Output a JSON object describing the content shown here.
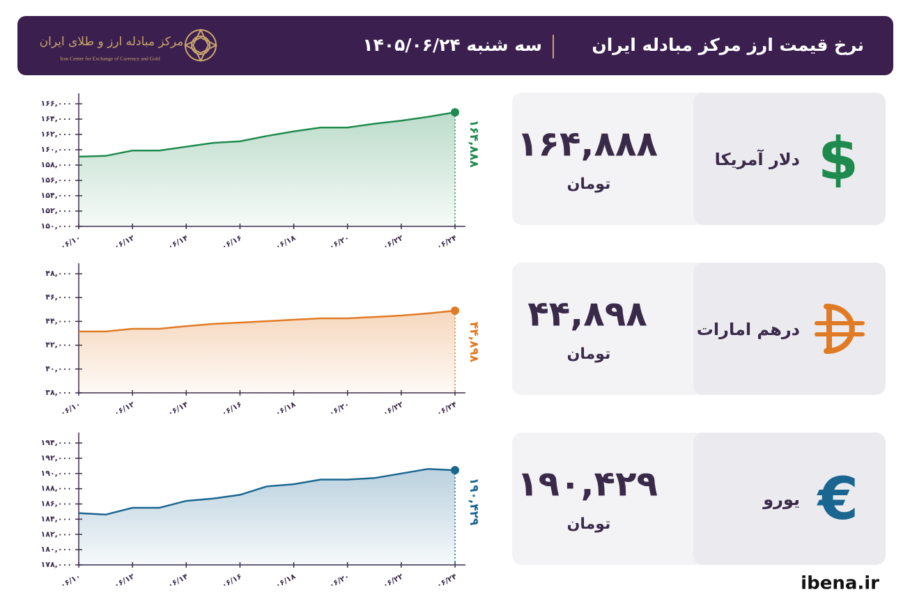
{
  "header": {
    "title": "نرخ قیمت ارز مرکز مبادله ایران",
    "date": "سه شنبه ۱۴۰۵/۰۶/۲۴",
    "logo_text": "مرکز مبادله ارز و طلای ایران",
    "logo_subtitle": "Iran Center for Exchange of Currency and Gold"
  },
  "footer": "ibena.ir",
  "chart_data": [
    {
      "type": "line",
      "title": "دلار آمریکا",
      "unit": "تومان",
      "symbol": "$",
      "color": "#1e8a4e",
      "categories": [
        "۰۶/۱۰",
        null,
        "۰۶/۱۲",
        null,
        "۰۶/۱۴",
        null,
        "۰۶/۱۶",
        null,
        "۰۶/۱۸",
        null,
        "۰۶/۲۰",
        null,
        "۰۶/۲۲",
        null,
        "۰۶/۲۴"
      ],
      "values": [
        159100,
        159200,
        159900,
        159900,
        160400,
        160900,
        161100,
        161800,
        162400,
        162900,
        162900,
        163400,
        163800,
        164300,
        164888
      ],
      "value_labels": [
        null,
        null,
        null,
        null,
        null,
        null,
        null,
        null,
        null,
        null,
        null,
        null,
        null,
        null,
        "۱۶۴,۸۸۸"
      ],
      "ylim": [
        150000,
        166000
      ],
      "yticks": [
        {
          "value": 150000,
          "label": "۱۵۰,۰۰۰"
        },
        {
          "value": 152000,
          "label": "۱۵۲,۰۰۰"
        },
        {
          "value": 154000,
          "label": "۱۵۴,۰۰۰"
        },
        {
          "value": 156000,
          "label": "۱۵۶,۰۰۰"
        },
        {
          "value": 158000,
          "label": "۱۵۸,۰۰۰"
        },
        {
          "value": 160000,
          "label": "۱۶۰,۰۰۰"
        },
        {
          "value": 162000,
          "label": "۱۶۲,۰۰۰"
        },
        {
          "value": 164000,
          "label": "۱۶۴,۰۰۰"
        },
        {
          "value": 166000,
          "label": "۱۶۶,۰۰۰"
        }
      ]
    },
    {
      "type": "line",
      "title": "درهم امارات",
      "unit": "تومان",
      "color": "#e07a24",
      "categories": [
        "۰۶/۱۰",
        null,
        "۰۶/۱۲",
        null,
        "۰۶/۱۴",
        null,
        "۰۶/۱۶",
        null,
        "۰۶/۱۸",
        null,
        "۰۶/۲۰",
        null,
        "۰۶/۲۲",
        null,
        "۰۶/۲۴"
      ],
      "values": [
        43150,
        43150,
        43380,
        43380,
        43600,
        43790,
        43900,
        44020,
        44140,
        44260,
        44260,
        44370,
        44490,
        44670,
        44898
      ],
      "value_labels": [
        null,
        null,
        null,
        null,
        null,
        null,
        null,
        null,
        null,
        null,
        null,
        null,
        null,
        null,
        "۴۴,۸۹۸"
      ],
      "ylim": [
        38000,
        48000
      ],
      "yticks": [
        {
          "value": 38000,
          "label": "۳۸,۰۰۰"
        },
        {
          "value": 40000,
          "label": "۴۰,۰۰۰"
        },
        {
          "value": 42000,
          "label": "۴۲,۰۰۰"
        },
        {
          "value": 44000,
          "label": "۴۴,۰۰۰"
        },
        {
          "value": 46000,
          "label": "۴۶,۰۰۰"
        },
        {
          "value": 48000,
          "label": "۴۸,۰۰۰"
        }
      ]
    },
    {
      "type": "line",
      "title": "یورو",
      "unit": "تومان",
      "symbol": "€",
      "color": "#1a6690",
      "categories": [
        "۰۶/۱۰",
        null,
        "۰۶/۱۲",
        null,
        "۰۶/۱۴",
        null,
        "۰۶/۱۶",
        null,
        "۰۶/۱۸",
        null,
        "۰۶/۲۰",
        null,
        "۰۶/۲۲",
        null,
        "۰۶/۲۴"
      ],
      "values": [
        184800,
        184600,
        185500,
        185500,
        186400,
        186700,
        187200,
        188300,
        188600,
        189200,
        189200,
        189400,
        190000,
        190600,
        190429
      ],
      "value_labels": [
        null,
        null,
        null,
        null,
        null,
        null,
        null,
        null,
        null,
        null,
        null,
        null,
        null,
        null,
        "۱۹۰,۴۲۹"
      ],
      "ylim": [
        178000,
        194000
      ],
      "yticks": [
        {
          "value": 178000,
          "label": "۱۷۸,۰۰۰"
        },
        {
          "value": 180000,
          "label": "۱۸۰,۰۰۰"
        },
        {
          "value": 182000,
          "label": "۱۸۲,۰۰۰"
        },
        {
          "value": 184000,
          "label": "۱۸۴,۰۰۰"
        },
        {
          "value": 186000,
          "label": "۱۸۶,۰۰۰"
        },
        {
          "value": 188000,
          "label": "۱۸۸,۰۰۰"
        },
        {
          "value": 190000,
          "label": "۱۹۰,۰۰۰"
        },
        {
          "value": 192000,
          "label": "۱۹۲,۰۰۰"
        },
        {
          "value": 194000,
          "label": "۱۹۴,۰۰۰"
        }
      ]
    }
  ]
}
